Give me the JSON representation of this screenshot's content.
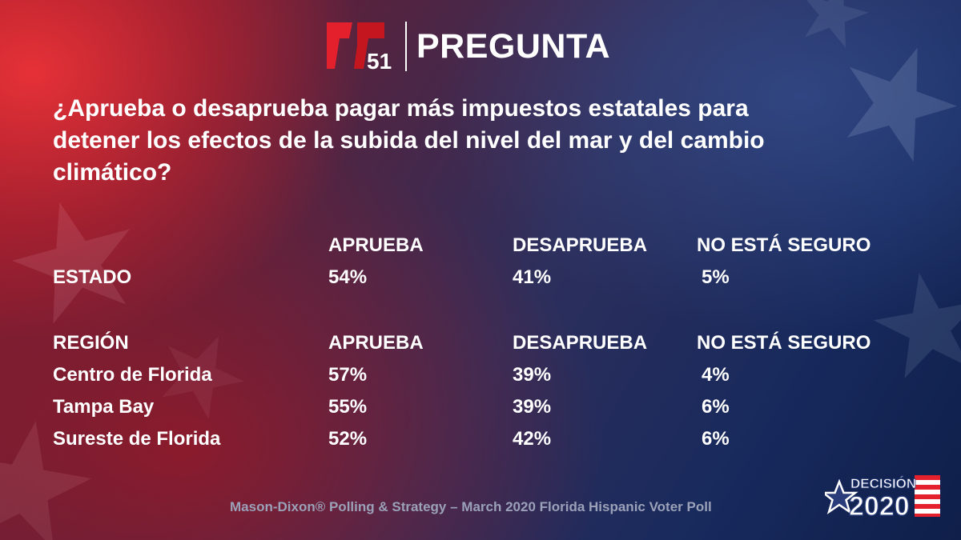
{
  "brand": {
    "channel_number": "51",
    "header_title": "PREGUNTA"
  },
  "question": "¿Aprueba o desaprueba pagar más impuestos estatales para detener los efectos de la subida del nivel del mar y del cambio climático?",
  "chart_data": {
    "type": "table",
    "columns": [
      "APRUEBA",
      "DESAPRUEBA",
      "NO ESTÁ SEGURO"
    ],
    "state": {
      "label": "ESTADO",
      "values": [
        "54%",
        "41%",
        "5%"
      ]
    },
    "region": {
      "header": "REGIÓN",
      "rows": [
        {
          "label": "Centro de Florida",
          "values": [
            "57%",
            "39%",
            "4%"
          ]
        },
        {
          "label": "Tampa Bay",
          "values": [
            "55%",
            "39%",
            "6%"
          ]
        },
        {
          "label": "Sureste de Florida",
          "values": [
            "52%",
            "42%",
            "6%"
          ]
        }
      ]
    }
  },
  "source": "Mason-Dixon® Polling & Strategy – March 2020 Florida Hispanic Voter Poll",
  "badge": {
    "line1": "DECISIÓN",
    "line2": "2020"
  },
  "colors": {
    "brand_red": "#e3202c",
    "text_white": "#ffffff",
    "source_gray": "#9aa1b8",
    "flag_blue": "#2a3d7a"
  }
}
